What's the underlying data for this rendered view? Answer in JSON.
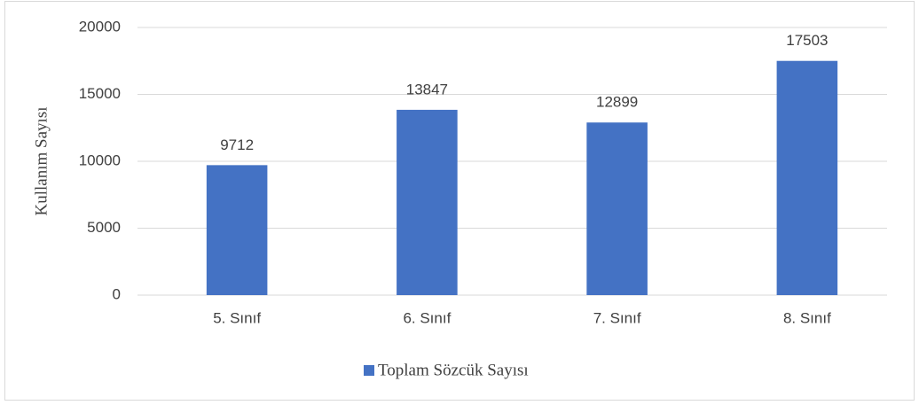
{
  "chart_data": {
    "type": "bar",
    "y_label": "Kullanım Sayısı",
    "categories": [
      "5. Sınıf",
      "6. Sınıf",
      "7. Sınıf",
      "8. Sınıf"
    ],
    "series": [
      {
        "name": "Toplam Sözcük Sayısı",
        "color": "#4472c4",
        "values": [
          9712,
          13847,
          12899,
          17503
        ]
      }
    ],
    "ylim": [
      0,
      20000
    ],
    "yticks": [
      0,
      5000,
      10000,
      15000,
      20000
    ],
    "grid": true,
    "legend": "bottom"
  }
}
